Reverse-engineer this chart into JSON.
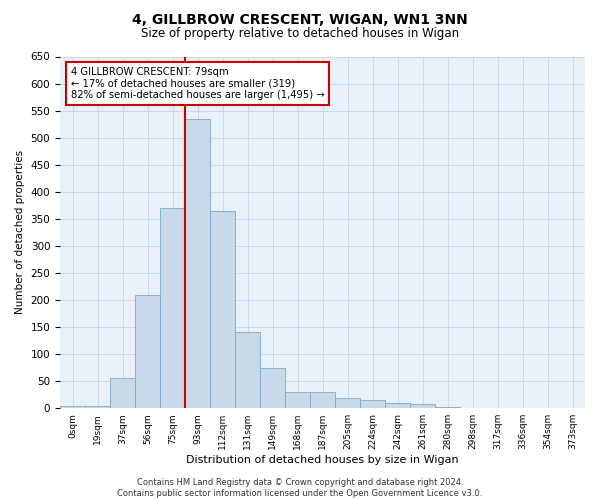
{
  "title": "4, GILLBROW CRESCENT, WIGAN, WN1 3NN",
  "subtitle": "Size of property relative to detached houses in Wigan",
  "xlabel": "Distribution of detached houses by size in Wigan",
  "ylabel": "Number of detached properties",
  "bar_values": [
    5,
    5,
    55,
    210,
    370,
    535,
    365,
    140,
    75,
    30,
    30,
    18,
    15,
    10,
    8,
    2,
    1,
    0,
    0,
    0,
    0
  ],
  "bar_labels": [
    "0sqm",
    "19sqm",
    "37sqm",
    "56sqm",
    "75sqm",
    "93sqm",
    "112sqm",
    "131sqm",
    "149sqm",
    "168sqm",
    "187sqm",
    "205sqm",
    "224sqm",
    "242sqm",
    "261sqm",
    "280sqm",
    "298sqm",
    "317sqm",
    "336sqm",
    "354sqm",
    "373sqm"
  ],
  "bar_color": "#c8daea",
  "bar_edge_color": "#7aaac8",
  "red_line_x": 4.5,
  "annotation_text": "4 GILLBROW CRESCENT: 79sqm\n← 17% of detached houses are smaller (319)\n82% of semi-detached houses are larger (1,495) →",
  "red_line_color": "#cc0000",
  "box_edge_color": "#cc0000",
  "ylim": [
    0,
    650
  ],
  "yticks": [
    0,
    50,
    100,
    150,
    200,
    250,
    300,
    350,
    400,
    450,
    500,
    550,
    600,
    650
  ],
  "footer": "Contains HM Land Registry data © Crown copyright and database right 2024.\nContains public sector information licensed under the Open Government Licence v3.0.",
  "background_color": "#ffffff",
  "plot_bg_color": "#e8f0f8",
  "grid_color": "#c0d0e0"
}
